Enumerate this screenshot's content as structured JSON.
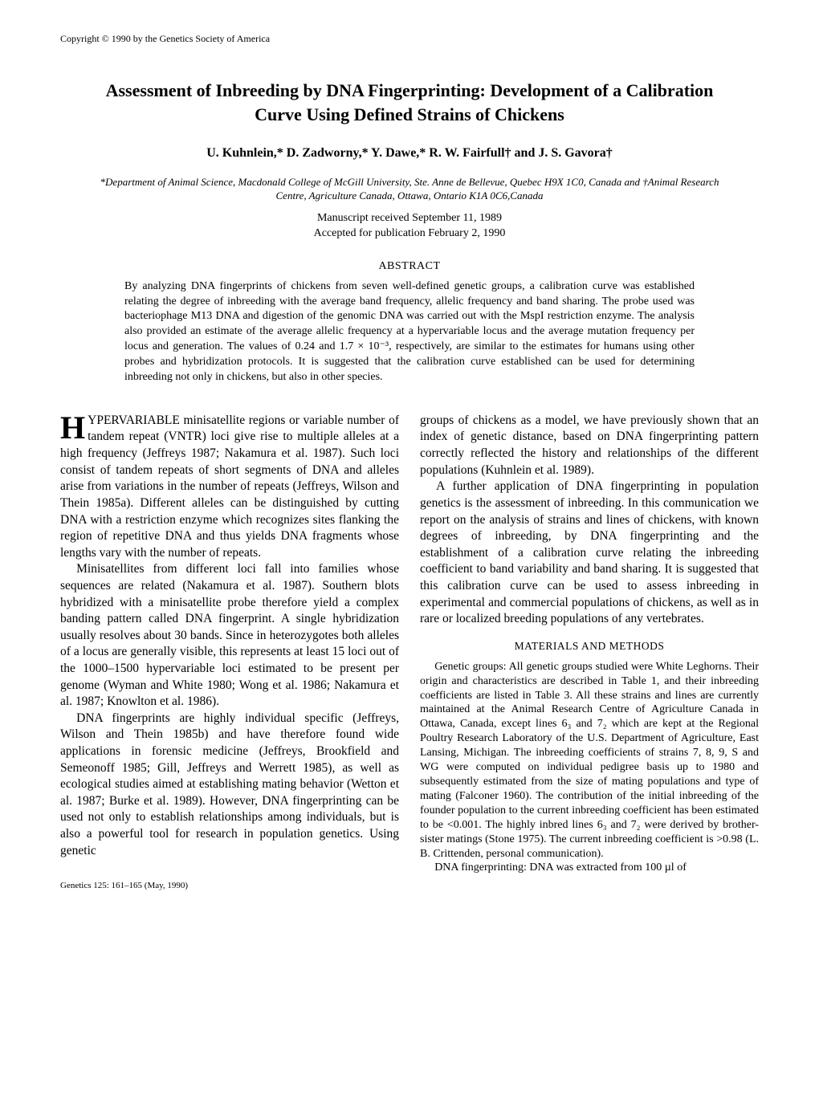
{
  "copyright": "Copyright © 1990 by the Genetics Society of America",
  "title": "Assessment of Inbreeding by DNA Fingerprinting: Development of a Calibration Curve Using Defined Strains of Chickens",
  "authors": "U. Kuhnlein,* D. Zadworny,* Y. Dawe,* R. W. Fairfull† and J. S. Gavora†",
  "affiliations": "*Department of Animal Science, Macdonald College of McGill University, Ste. Anne de Bellevue, Quebec H9X 1C0, Canada and †Animal Research Centre, Agriculture Canada, Ottawa, Ontario K1A 0C6,Canada",
  "received": "Manuscript received September 11, 1989",
  "accepted": "Accepted for publication February 2, 1990",
  "abstract_heading": "ABSTRACT",
  "abstract_body": "By analyzing DNA fingerprints of chickens from seven well-defined genetic groups, a calibration curve was established relating the degree of inbreeding with the average band frequency, allelic frequency and band sharing. The probe used was bacteriophage M13 DNA and digestion of the genomic DNA was carried out with the MspI restriction enzyme. The analysis also provided an estimate of the average allelic frequency at a hypervariable locus and the average mutation frequency per locus and generation. The values of 0.24 and 1.7 × 10⁻³, respectively, are similar to the estimates for humans using other probes and hybridization protocols. It is suggested that the calibration curve established can be used for determining inbreeding not only in chickens, but also in other species.",
  "col1": {
    "p1": "YPERVARIABLE minisatellite regions or variable number of tandem repeat (VNTR) loci give rise to multiple alleles at a high frequency (Jeffreys 1987; Nakamura et al. 1987). Such loci consist of tandem repeats of short segments of DNA and alleles arise from variations in the number of repeats (Jeffreys, Wilson and Thein 1985a). Different alleles can be distinguished by cutting DNA with a restriction enzyme which recognizes sites flanking the region of repetitive DNA and thus yields DNA fragments whose lengths vary with the number of repeats.",
    "p2": "Minisatellites from different loci fall into families whose sequences are related (Nakamura et al. 1987). Southern blots hybridized with a minisatellite probe therefore yield a complex banding pattern called DNA fingerprint. A single hybridization usually resolves about 30 bands. Since in heterozygotes both alleles of a locus are generally visible, this represents at least 15 loci out of the 1000–1500 hypervariable loci estimated to be present per genome (Wyman and White 1980; Wong et al. 1986; Nakamura et al. 1987; Knowlton et al. 1986).",
    "p3": "DNA fingerprints are highly individual specific (Jeffreys, Wilson and Thein 1985b) and have therefore found wide applications in forensic medicine (Jeffreys, Brookfield and Semeonoff 1985; Gill, Jeffreys and Werrett 1985), as well as ecological studies aimed at establishing mating behavior (Wetton et al. 1987; Burke et al. 1989). However, DNA fingerprinting can be used not only to establish relationships among individuals, but is also a powerful tool for research in population genetics. Using genetic"
  },
  "col2": {
    "p1": "groups of chickens as a model, we have previously shown that an index of genetic distance, based on DNA fingerprinting pattern correctly reflected the history and relationships of the different populations (Kuhnlein et al. 1989).",
    "p2": "A further application of DNA fingerprinting in population genetics is the assessment of inbreeding. In this communication we report on the analysis of strains and lines of chickens, with known degrees of inbreeding, by DNA fingerprinting and the establishment of a calibration curve relating the inbreeding coefficient to band variability and band sharing. It is suggested that this calibration curve can be used to assess inbreeding in experimental and commercial populations of chickens, as well as in rare or localized breeding populations of any vertebrates.",
    "methods_heading": "MATERIALS AND METHODS",
    "m1": "Genetic groups: All genetic groups studied were White Leghorns. Their origin and characteristics are described in Table 1, and their inbreeding coefficients are listed in Table 3. All these strains and lines are currently maintained at the Animal Research Centre of Agriculture Canada in Ottawa, Canada, except lines 6₃ and 7₂ which are kept at the Regional Poultry Research Laboratory of the U.S. Department of Agriculture, East Lansing, Michigan. The inbreeding coefficients of strains 7, 8, 9, S and WG were computed on individual pedigree basis up to 1980 and subsequently estimated from the size of mating populations and type of mating (Falconer 1960). The contribution of the initial inbreeding of the founder population to the current inbreeding coefficient has been estimated to be <0.001. The highly inbred lines 6₃ and 7₂ were derived by brother-sister matings (Stone 1975). The current inbreeding coefficient is >0.98 (L. B. Crittenden, personal communication).",
    "m2": "DNA fingerprinting: DNA was extracted from 100 µl of"
  },
  "footer_cite": "Genetics 125: 161–165 (May, 1990)"
}
